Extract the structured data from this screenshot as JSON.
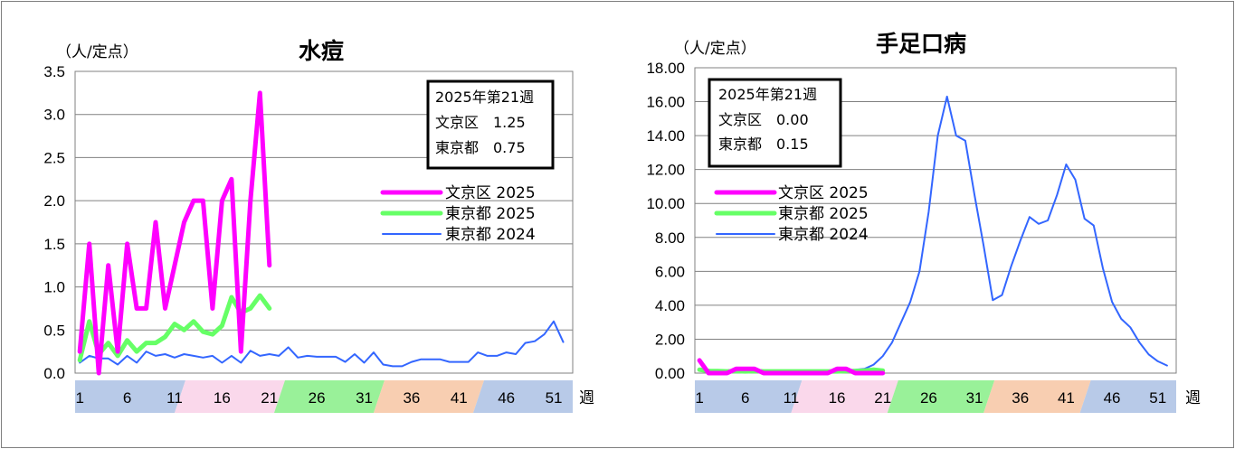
{
  "chart_data": [
    {
      "type": "line",
      "title": "水痘",
      "unit_label": "（人/定点）",
      "ylim": [
        0,
        3.5
      ],
      "yticks": [
        "0.0",
        "0.5",
        "1.0",
        "1.5",
        "2.0",
        "2.5",
        "3.0",
        "3.5"
      ],
      "x_unit": "週",
      "week_labels": [
        1,
        6,
        11,
        16,
        21,
        26,
        31,
        36,
        41,
        46,
        51
      ],
      "info_box": [
        "2025年第21週",
        "文京区　1.25",
        "東京都　0.75"
      ],
      "legend_position": "right",
      "series": [
        {
          "name": "文京区 2025",
          "color": "#ff00ff",
          "values": [
            0.25,
            1.5,
            0,
            1.25,
            0.25,
            1.5,
            0.75,
            0.75,
            1.75,
            0.75,
            1.25,
            1.75,
            2.0,
            2.0,
            0.75,
            2.0,
            2.25,
            0.25,
            2.0,
            3.25,
            1.25
          ]
        },
        {
          "name": "東京都 2025",
          "color": "#66ff66",
          "values": [
            0.15,
            0.6,
            0.22,
            0.35,
            0.2,
            0.38,
            0.25,
            0.35,
            0.35,
            0.42,
            0.57,
            0.5,
            0.6,
            0.48,
            0.45,
            0.55,
            0.88,
            0.7,
            0.75,
            0.9,
            0.75
          ]
        },
        {
          "name": "東京都 2024",
          "color": "#3366ff",
          "values": [
            0.12,
            0.2,
            0.17,
            0.17,
            0.1,
            0.2,
            0.12,
            0.25,
            0.2,
            0.22,
            0.18,
            0.22,
            0.2,
            0.18,
            0.2,
            0.12,
            0.2,
            0.12,
            0.26,
            0.2,
            0.22,
            0.2,
            0.3,
            0.18,
            0.2,
            0.19,
            0.19,
            0.19,
            0.13,
            0.22,
            0.12,
            0.24,
            0.1,
            0.08,
            0.08,
            0.13,
            0.16,
            0.16,
            0.16,
            0.13,
            0.13,
            0.13,
            0.24,
            0.2,
            0.2,
            0.24,
            0.22,
            0.35,
            0.37,
            0.45,
            0.6,
            0.36
          ]
        }
      ]
    },
    {
      "type": "line",
      "title": "手足口病",
      "unit_label": "（人/定点）",
      "ylim": [
        0,
        18
      ],
      "yticks": [
        "0.00",
        "2.00",
        "4.00",
        "6.00",
        "8.00",
        "10.00",
        "12.00",
        "14.00",
        "16.00",
        "18.00"
      ],
      "x_unit": "週",
      "week_labels": [
        1,
        6,
        11,
        16,
        21,
        26,
        31,
        36,
        41,
        46,
        51
      ],
      "info_box": [
        "2025年第21週",
        "文京区　0.00",
        "東京都　0.15"
      ],
      "legend_position": "left",
      "series": [
        {
          "name": "文京区 2025",
          "color": "#ff00ff",
          "values": [
            0.75,
            0,
            0,
            0,
            0.25,
            0.25,
            0.25,
            0,
            0,
            0,
            0,
            0,
            0,
            0,
            0,
            0.25,
            0.25,
            0,
            0,
            0,
            0
          ]
        },
        {
          "name": "東京都 2025",
          "color": "#66ff66",
          "values": [
            0.2,
            0.12,
            0.12,
            0.1,
            0.12,
            0.1,
            0.12,
            0.1,
            0.1,
            0.1,
            0.1,
            0.1,
            0.1,
            0.1,
            0.1,
            0.1,
            0.12,
            0.12,
            0.15,
            0.2,
            0.15
          ]
        },
        {
          "name": "東京都 2024",
          "color": "#3366ff",
          "values": [
            0.25,
            0.2,
            0.15,
            0.15,
            0.1,
            0.1,
            0.1,
            0.08,
            0.08,
            0.08,
            0.08,
            0.08,
            0.1,
            0.1,
            0.1,
            0.12,
            0.15,
            0.2,
            0.25,
            0.5,
            1.0,
            1.8,
            3.0,
            4.2,
            6.0,
            9.5,
            14.0,
            16.3,
            14.0,
            13.7,
            10.5,
            7.5,
            4.3,
            4.6,
            6.3,
            7.8,
            9.2,
            8.8,
            9.0,
            10.5,
            12.3,
            11.4,
            9.1,
            8.7,
            6.2,
            4.2,
            3.2,
            2.7,
            1.8,
            1.1,
            0.7,
            0.45
          ]
        }
      ]
    }
  ]
}
